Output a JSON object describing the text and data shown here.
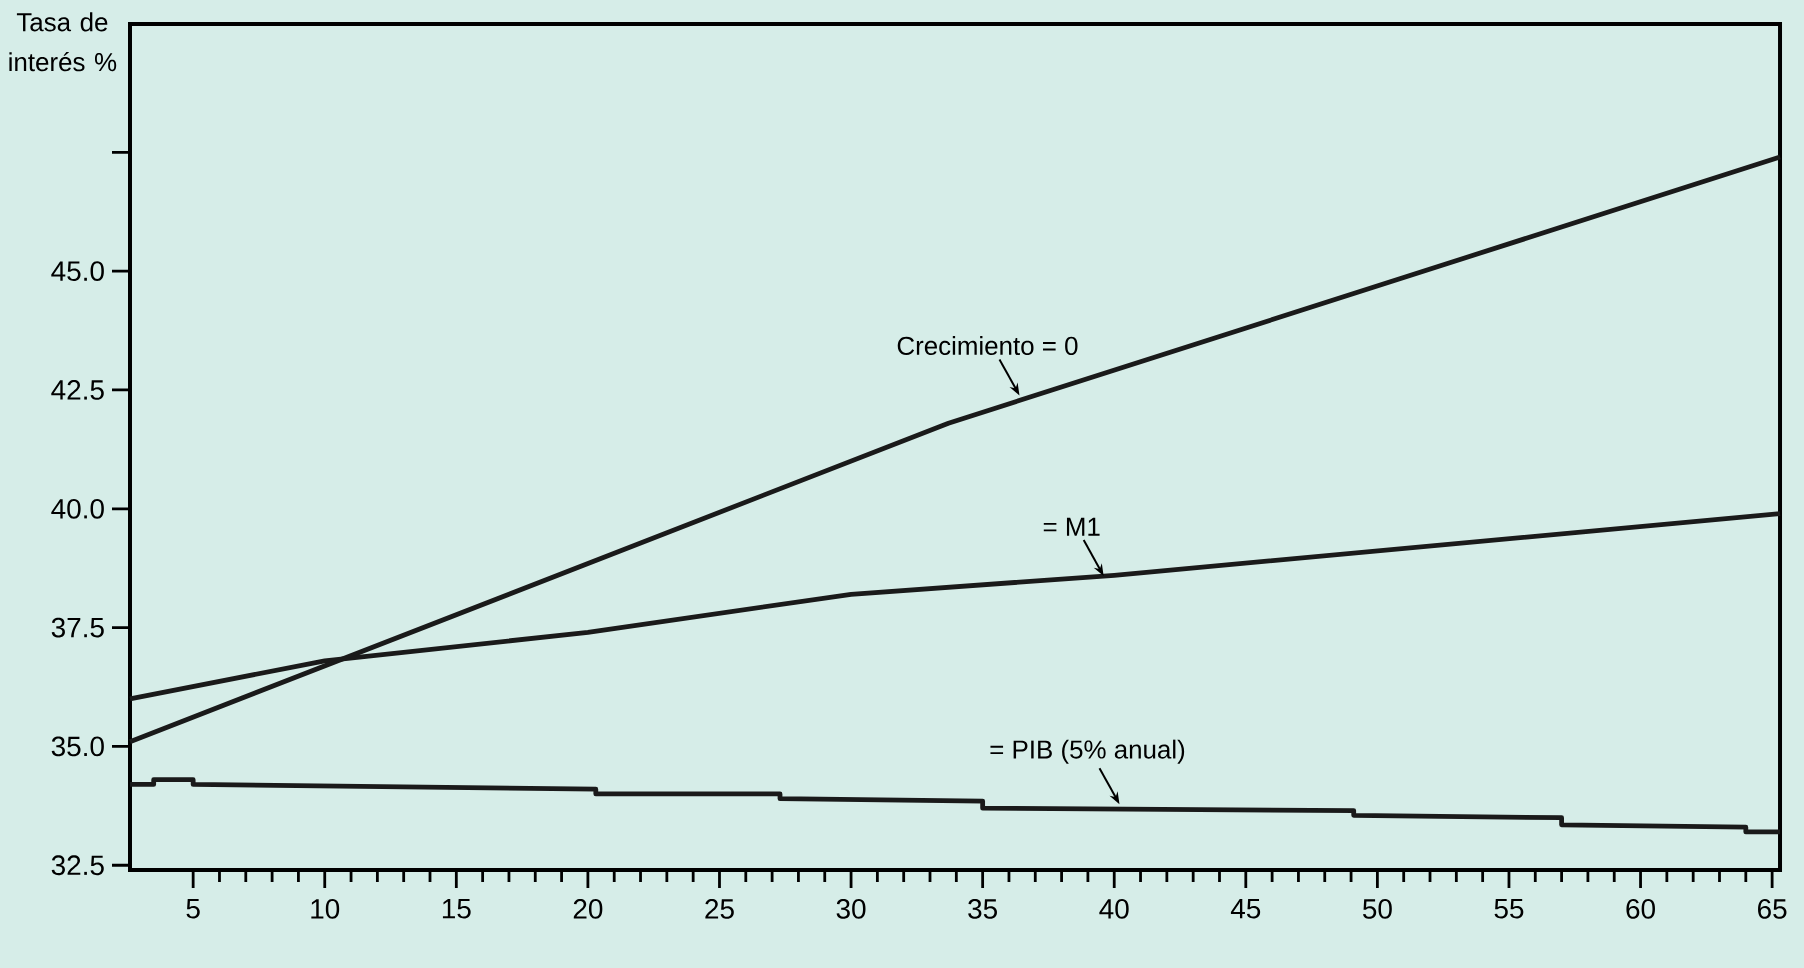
{
  "chart_data": {
    "type": "line",
    "ylabel": "Tasa de interés %",
    "xlim": [
      2.6,
      65.3
    ],
    "ylim": [
      32.4,
      50.2
    ],
    "xticks": [
      5,
      10,
      15,
      20,
      25,
      30,
      35,
      40,
      45,
      50,
      55,
      60,
      65
    ],
    "yticks": [
      {
        "value": 32.5,
        "label": "32.5"
      },
      {
        "value": 35,
        "label": "35.0"
      },
      {
        "value": 37.5,
        "label": "37.5"
      },
      {
        "value": 40,
        "label": "40.0"
      },
      {
        "value": 42.5,
        "label": "42.5"
      },
      {
        "value": 45,
        "label": "45.0"
      },
      {
        "value": 47.5,
        "label": null
      }
    ],
    "series": [
      {
        "color": "#1a1a1a",
        "x": [
          2.6,
          33.7,
          65.3
        ],
        "values": [
          35.1,
          41.8,
          47.4
        ]
      },
      {
        "color": "#1a1a1a",
        "x": [
          2.6,
          10,
          20,
          30,
          40,
          65.3
        ],
        "values": [
          36.0,
          36.8,
          37.4,
          38.2,
          38.6,
          39.9
        ]
      },
      {
        "color": "#1a1a1a",
        "x": [
          2.6,
          3.5,
          3.5,
          5,
          5,
          20.3,
          20.3,
          27.3,
          27.3,
          35,
          35,
          49.1,
          49.1,
          57,
          57,
          64,
          64,
          65.3
        ],
        "values": [
          34.2,
          34.2,
          34.3,
          34.3,
          34.2,
          34.1,
          34.0,
          34.0,
          33.9,
          33.85,
          33.7,
          33.65,
          33.55,
          33.5,
          33.35,
          33.3,
          33.2,
          33.2
        ]
      }
    ],
    "annotations": [
      {
        "text": "Crecimiento = 0",
        "x": 36.4,
        "y": 42.3
      },
      {
        "text": "= M1",
        "x": 39.6,
        "y": 38.5
      },
      {
        "text": "= PIB (5% anual)",
        "x": 40.2,
        "y": 33.7
      }
    ],
    "marker": "none",
    "line_style": "solid"
  }
}
